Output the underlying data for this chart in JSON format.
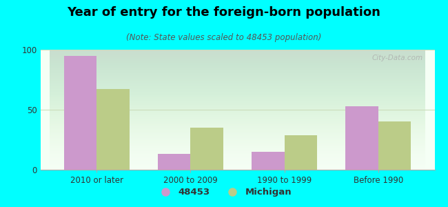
{
  "title": "Year of entry for the foreign-born population",
  "subtitle": "(Note: State values scaled to 48453 population)",
  "categories": [
    "2010 or later",
    "2000 to 2009",
    "1990 to 1999",
    "Before 1990"
  ],
  "values_48453": [
    95,
    13,
    15,
    53
  ],
  "values_michigan": [
    67,
    35,
    29,
    40
  ],
  "bar_color_48453": "#cc99cc",
  "bar_color_michigan": "#bbcc88",
  "background_color": "#00ffff",
  "ylim": [
    0,
    100
  ],
  "yticks": [
    0,
    50,
    100
  ],
  "bar_width": 0.35,
  "legend_label_48453": "48453",
  "legend_label_michigan": "Michigan",
  "title_fontsize": 13,
  "subtitle_fontsize": 8.5,
  "tick_label_fontsize": 8.5,
  "legend_fontsize": 9.5,
  "grid_color": "#ccddbb",
  "watermark": "City-Data.com"
}
